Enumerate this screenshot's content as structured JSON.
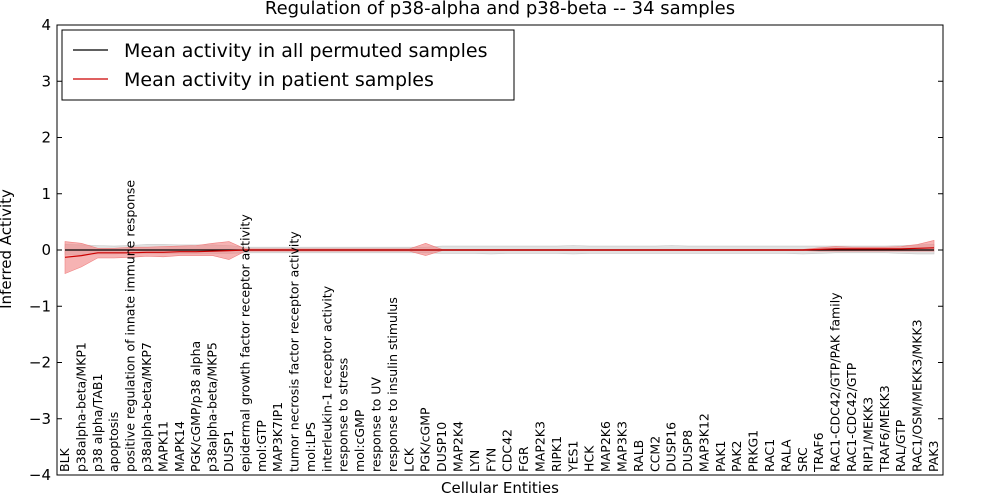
{
  "chart_data": {
    "type": "line",
    "title": "Regulation of p38-alpha and p38-beta -- 34 samples",
    "xlabel": "Cellular Entities",
    "ylabel": "Inferred Activity",
    "ylim": [
      -4,
      4
    ],
    "yticks": [
      -4,
      -3,
      -2,
      -1,
      0,
      1,
      2,
      3,
      4
    ],
    "ytick_labels": [
      "−4",
      "−3",
      "−2",
      "−1",
      "0",
      "1",
      "2",
      "3",
      "4"
    ],
    "grid": false,
    "legend_position": "top-left",
    "categories": [
      "BLK",
      "p38alpha-beta/MKP1",
      "p38 alpha/TAB1",
      "apoptosis",
      "positive regulation of innate immune response",
      "p38alpha-beta/MKP7",
      "MAPK11",
      "MAPK14",
      "PGK/cGMP/p38 alpha",
      "p38alpha-beta/MKP5",
      "DUSP1",
      "epidermal growth factor receptor activity",
      "mol:GTP",
      "MAP3K7IP1",
      "tumor necrosis factor receptor activity",
      "mol:LPS",
      "interleukin-1 receptor activity",
      "response to stress",
      "mol:cGMP",
      "response to UV",
      "response to insulin stimulus",
      "LCK",
      "PGK/cGMP",
      "DUSP10",
      "MAP2K4",
      "LYN",
      "FYN",
      "CDC42",
      "FGR",
      "MAP2K3",
      "RIPK1",
      "YES1",
      "HCK",
      "MAP2K6",
      "MAP3K3",
      "RALB",
      "CCM2",
      "DUSP16",
      "DUSP8",
      "MAP3K12",
      "PAK1",
      "PAK2",
      "PRKG1",
      "RAC1",
      "RALA",
      "SRC",
      "TRAF6",
      "RAC1-CDC42/GTP/PAK family",
      "RAC1-CDC42/GTP",
      "RIP1/MEKK3",
      "TRAF6/MEKK3",
      "RAL/GTP",
      "RAC1/OSM/MEKK3/MKK3",
      "PAK3"
    ],
    "series": [
      {
        "name": "Mean activity in all permuted samples",
        "color": "#000000",
        "band_color": "#c8c8c8",
        "values": [
          0.0,
          0.0,
          0.0,
          0.0,
          0.0,
          0.0,
          0.0,
          0.0,
          0.0,
          0.0,
          0.0,
          0.0,
          0.0,
          0.0,
          0.0,
          0.0,
          0.0,
          0.0,
          0.0,
          0.0,
          0.0,
          0.0,
          0.0,
          0.0,
          0.0,
          0.0,
          0.0,
          0.0,
          0.0,
          0.0,
          0.0,
          0.0,
          0.0,
          0.0,
          0.0,
          0.0,
          0.0,
          0.0,
          0.0,
          0.0,
          0.0,
          0.0,
          0.0,
          0.0,
          0.0,
          0.0,
          0.0,
          0.0,
          0.0,
          0.0,
          0.0,
          0.0,
          0.0,
          0.0
        ],
        "band_lower": [
          -0.08,
          -0.08,
          -0.07,
          -0.07,
          -0.06,
          -0.06,
          -0.06,
          -0.06,
          -0.06,
          -0.06,
          -0.06,
          -0.05,
          -0.05,
          -0.05,
          -0.05,
          -0.05,
          -0.05,
          -0.05,
          -0.05,
          -0.05,
          -0.05,
          -0.05,
          -0.05,
          -0.06,
          -0.06,
          -0.06,
          -0.07,
          -0.06,
          -0.06,
          -0.06,
          -0.06,
          -0.07,
          -0.06,
          -0.06,
          -0.06,
          -0.06,
          -0.06,
          -0.06,
          -0.06,
          -0.06,
          -0.06,
          -0.06,
          -0.06,
          -0.06,
          -0.06,
          -0.07,
          -0.06,
          -0.05,
          -0.05,
          -0.05,
          -0.05,
          -0.06,
          -0.07,
          -0.07
        ],
        "band_upper": [
          0.1,
          0.09,
          0.08,
          0.07,
          0.08,
          0.1,
          0.1,
          0.09,
          0.09,
          0.09,
          0.08,
          0.05,
          0.05,
          0.05,
          0.05,
          0.05,
          0.05,
          0.05,
          0.05,
          0.05,
          0.05,
          0.05,
          0.05,
          0.07,
          0.07,
          0.07,
          0.07,
          0.07,
          0.07,
          0.07,
          0.07,
          0.08,
          0.07,
          0.07,
          0.07,
          0.07,
          0.07,
          0.08,
          0.07,
          0.07,
          0.07,
          0.07,
          0.07,
          0.07,
          0.07,
          0.07,
          0.07,
          0.07,
          0.07,
          0.07,
          0.07,
          0.08,
          0.09,
          0.1
        ]
      },
      {
        "name": "Mean activity in patient samples",
        "color": "#cc0000",
        "band_color": "#f08080",
        "values": [
          -0.13,
          -0.1,
          -0.05,
          -0.05,
          -0.05,
          -0.04,
          -0.04,
          -0.03,
          -0.03,
          -0.02,
          -0.01,
          0.0,
          0.0,
          0.0,
          0.0,
          0.0,
          0.0,
          0.0,
          0.0,
          0.0,
          0.0,
          0.0,
          0.0,
          0.0,
          0.0,
          0.0,
          0.0,
          0.0,
          0.0,
          0.0,
          0.0,
          0.0,
          0.0,
          0.0,
          0.0,
          0.0,
          0.0,
          0.0,
          0.0,
          0.0,
          0.0,
          0.0,
          0.0,
          0.0,
          0.0,
          0.0,
          0.01,
          0.02,
          0.02,
          0.02,
          0.02,
          0.02,
          0.03,
          0.04
        ],
        "band_lower": [
          -0.42,
          -0.3,
          -0.14,
          -0.14,
          -0.13,
          -0.11,
          -0.12,
          -0.1,
          -0.1,
          -0.1,
          -0.17,
          -0.02,
          -0.02,
          -0.02,
          -0.02,
          -0.02,
          -0.02,
          -0.02,
          -0.02,
          -0.02,
          -0.02,
          -0.02,
          -0.1,
          -0.01,
          -0.01,
          -0.01,
          -0.01,
          -0.01,
          -0.01,
          -0.01,
          -0.01,
          -0.01,
          -0.01,
          -0.01,
          -0.01,
          -0.01,
          -0.01,
          -0.01,
          -0.01,
          -0.01,
          -0.01,
          -0.01,
          -0.01,
          -0.01,
          -0.01,
          -0.01,
          -0.02,
          -0.02,
          -0.02,
          -0.02,
          -0.02,
          -0.02,
          -0.02,
          -0.02
        ],
        "band_upper": [
          0.15,
          0.12,
          0.03,
          0.03,
          0.05,
          0.05,
          0.06,
          0.07,
          0.08,
          0.12,
          0.15,
          0.02,
          0.02,
          0.02,
          0.02,
          0.02,
          0.02,
          0.02,
          0.02,
          0.02,
          0.02,
          0.02,
          0.12,
          0.01,
          0.01,
          0.01,
          0.01,
          0.01,
          0.01,
          0.01,
          0.01,
          0.01,
          0.01,
          0.01,
          0.01,
          0.01,
          0.01,
          0.01,
          0.01,
          0.01,
          0.01,
          0.01,
          0.01,
          0.01,
          0.01,
          0.01,
          0.04,
          0.06,
          0.05,
          0.05,
          0.05,
          0.06,
          0.1,
          0.17
        ]
      }
    ]
  }
}
